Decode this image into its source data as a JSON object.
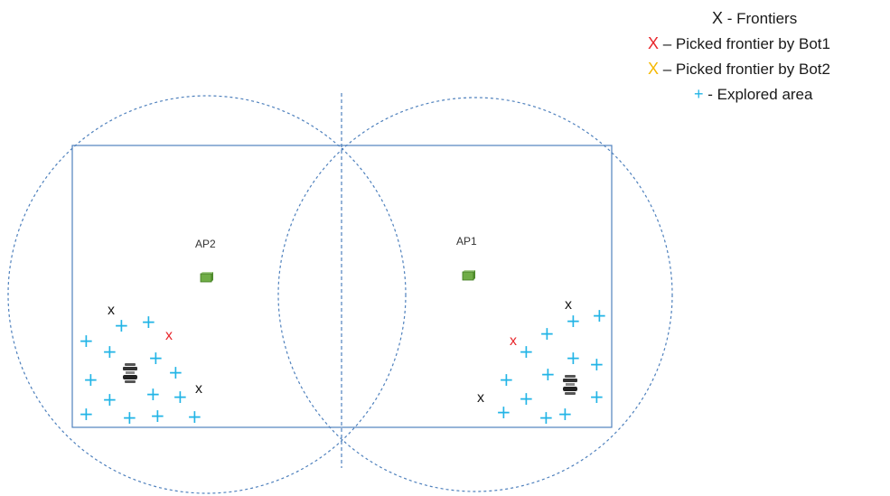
{
  "legend": {
    "items": [
      {
        "symbol": "X",
        "text": " - Frontiers"
      },
      {
        "symbol": "X",
        "text": " – Picked frontier by Bot1"
      },
      {
        "symbol": "X",
        "text": " – Picked frontier by Bot2"
      },
      {
        "symbol": "+",
        "text": " - Explored area"
      }
    ]
  },
  "access_points": [
    {
      "label": "AP2"
    },
    {
      "label": "AP1"
    }
  ],
  "marker_text": {
    "frontier": "x",
    "plus": "+"
  },
  "colors": {
    "frontier": "#1a1a1a",
    "bot1_frontier": "#e8262b",
    "bot2_frontier": "#f5b800",
    "explored": "#22b4e6",
    "boundary": "#4f81bd",
    "ap_box": "#70ad47"
  },
  "icons": [
    "robot-icon",
    "access-point-icon"
  ]
}
